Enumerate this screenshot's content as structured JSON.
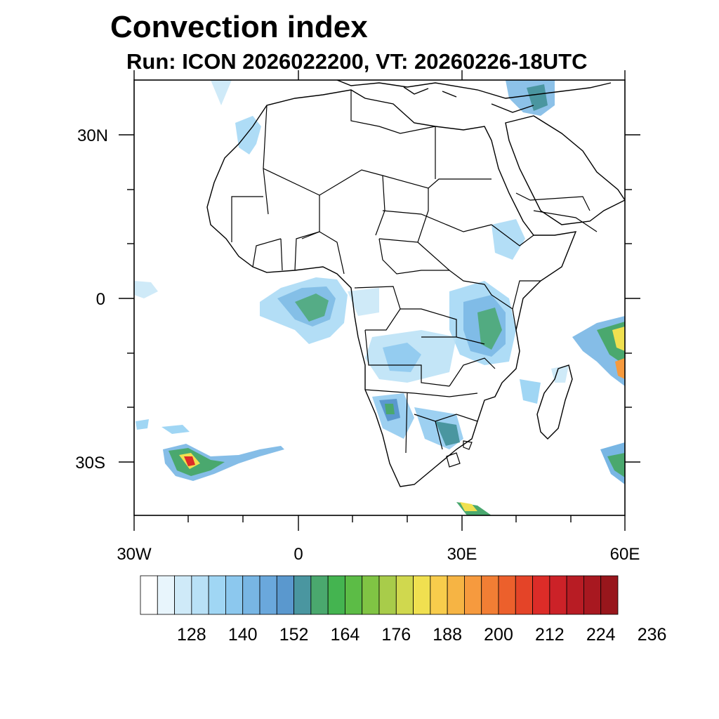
{
  "title": "Convection index",
  "subtitle": "Run: ICON 2026022200,  VT: 20260226-18UTC",
  "axes": {
    "y_labels": [
      "30N",
      "0",
      "30S"
    ],
    "x_labels": [
      "30W",
      "0",
      "30E",
      "60E"
    ]
  },
  "colorbar": {
    "labels": [
      "128",
      "140",
      "152",
      "164",
      "176",
      "188",
      "200",
      "212",
      "224",
      "236"
    ],
    "colors": [
      "#ffffff",
      "#e8f5fc",
      "#cfeaf8",
      "#b8e0f6",
      "#a0d6f4",
      "#8cc8ee",
      "#78b6e4",
      "#6aa8dc",
      "#5a98ce",
      "#4a96a0",
      "#4aa86e",
      "#44b450",
      "#5cbc46",
      "#80c444",
      "#a8cc4a",
      "#d0d84e",
      "#f0e050",
      "#f8cc4c",
      "#f6b444",
      "#f69a3e",
      "#f27e34",
      "#ec602c",
      "#e44428",
      "#dc2c28",
      "#cc2228",
      "#b81c24",
      "#a81820",
      "#98161c"
    ]
  },
  "colors": {
    "blue_light": "#a0d6f4",
    "blue": "#78b6e4",
    "teal": "#4a96a0",
    "green": "#44b450",
    "yellow": "#f0e050",
    "orange": "#f69a3e",
    "red": "#dc2c28"
  }
}
